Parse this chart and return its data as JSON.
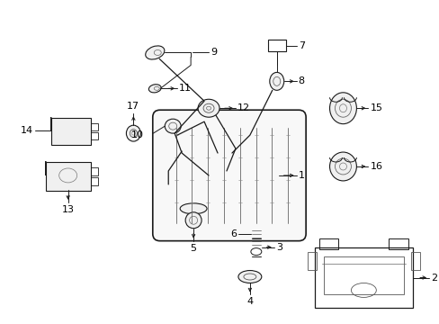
{
  "bg_color": "#ffffff",
  "line_color": "#1a1a1a",
  "text_color": "#000000",
  "fig_width": 4.89,
  "fig_height": 3.6,
  "dpi": 100,
  "xlim": [
    0,
    489
  ],
  "ylim": [
    0,
    360
  ]
}
